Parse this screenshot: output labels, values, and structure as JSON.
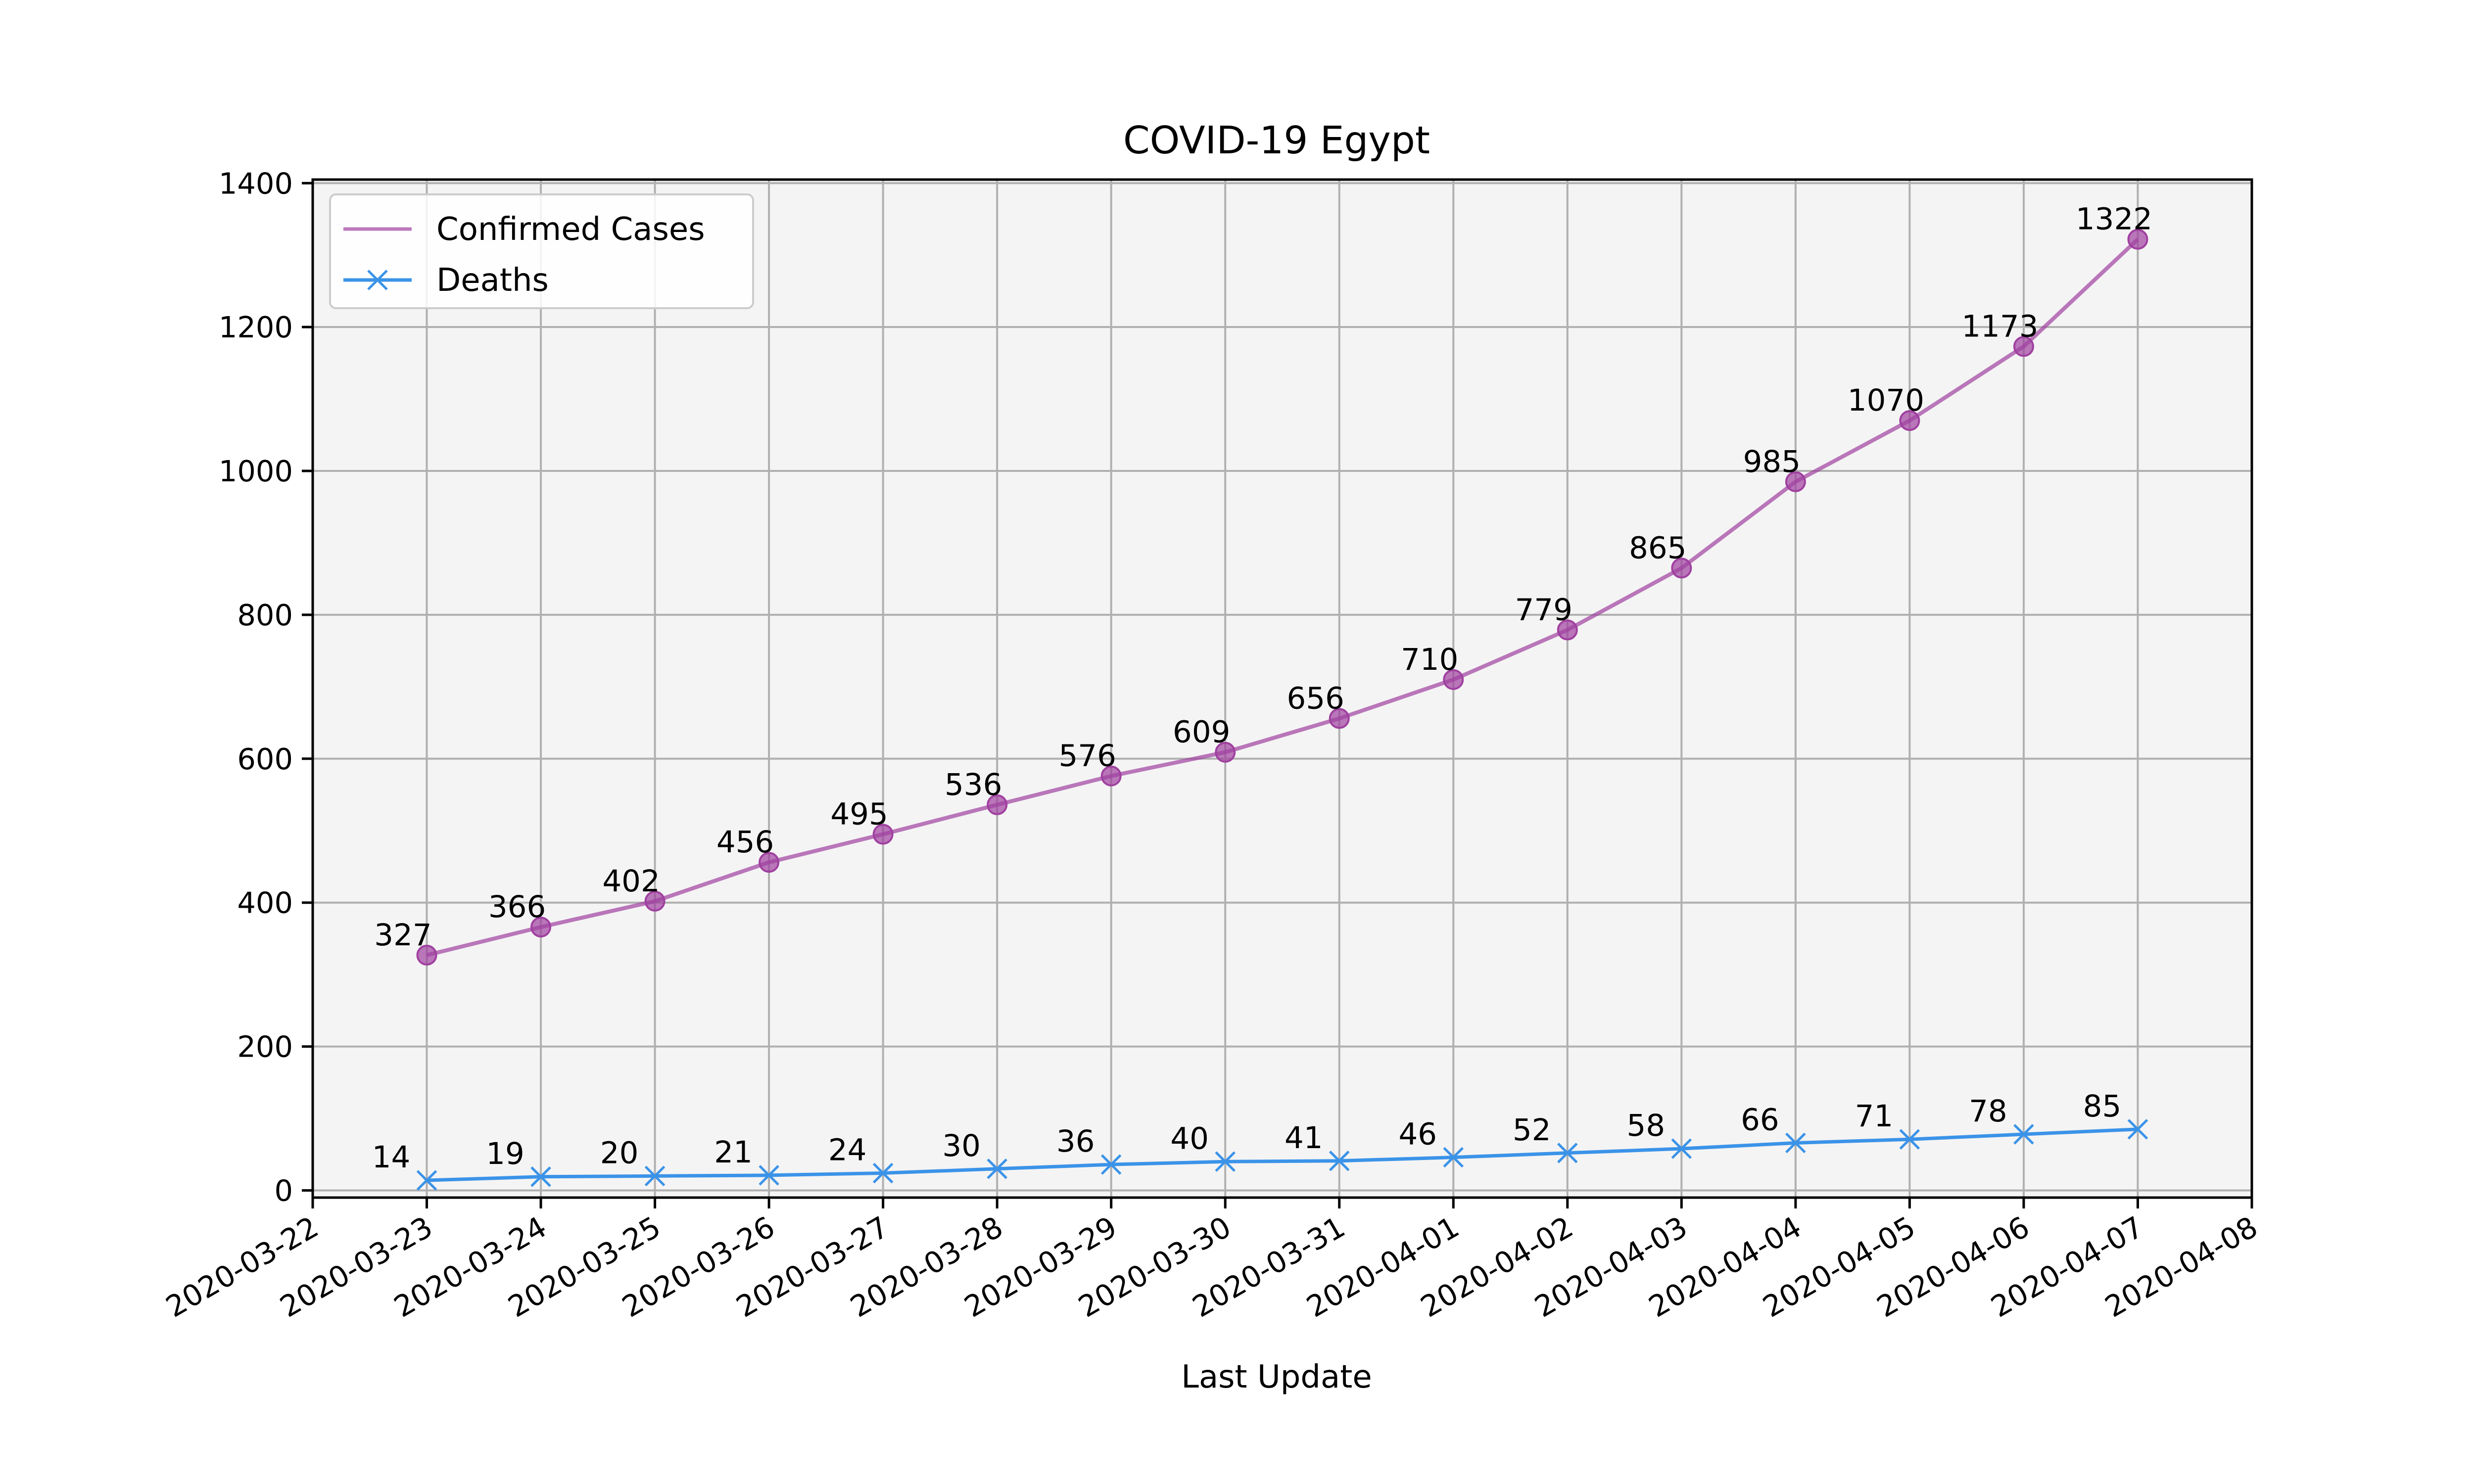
{
  "chart_data": {
    "type": "line",
    "title": "COVID-19 Egypt",
    "xlabel": "Last Update",
    "ylabel": "",
    "x": [
      "2020-03-23",
      "2020-03-24",
      "2020-03-25",
      "2020-03-26",
      "2020-03-27",
      "2020-03-28",
      "2020-03-29",
      "2020-03-30",
      "2020-03-31",
      "2020-04-01",
      "2020-04-02",
      "2020-04-03",
      "2020-04-04",
      "2020-04-05",
      "2020-04-06",
      "2020-04-07"
    ],
    "x_ticks": [
      "2020-03-22",
      "2020-03-23",
      "2020-03-24",
      "2020-03-25",
      "2020-03-26",
      "2020-03-27",
      "2020-03-28",
      "2020-03-29",
      "2020-03-30",
      "2020-03-31",
      "2020-04-01",
      "2020-04-02",
      "2020-04-03",
      "2020-04-04",
      "2020-04-05",
      "2020-04-06",
      "2020-04-07",
      "2020-04-08"
    ],
    "xlim": [
      "2020-03-22",
      "2020-04-08"
    ],
    "y_ticks": [
      0,
      200,
      400,
      600,
      800,
      1000,
      1200,
      1400
    ],
    "ylim": [
      -10,
      1405
    ],
    "grid": true,
    "background": "#f4f4f4",
    "grid_color": "#b0b0b0",
    "legend_position": "top-left",
    "series": [
      {
        "name": "Confirmed Cases",
        "color": "#a040a0",
        "marker": "circle",
        "values": [
          327,
          366,
          402,
          456,
          495,
          536,
          576,
          609,
          656,
          710,
          779,
          865,
          985,
          1070,
          1173,
          1322
        ]
      },
      {
        "name": "Deaths",
        "color": "#3b93e8",
        "marker": "x",
        "values": [
          14,
          19,
          20,
          21,
          24,
          30,
          36,
          40,
          41,
          46,
          52,
          58,
          66,
          71,
          78,
          85
        ]
      }
    ]
  }
}
